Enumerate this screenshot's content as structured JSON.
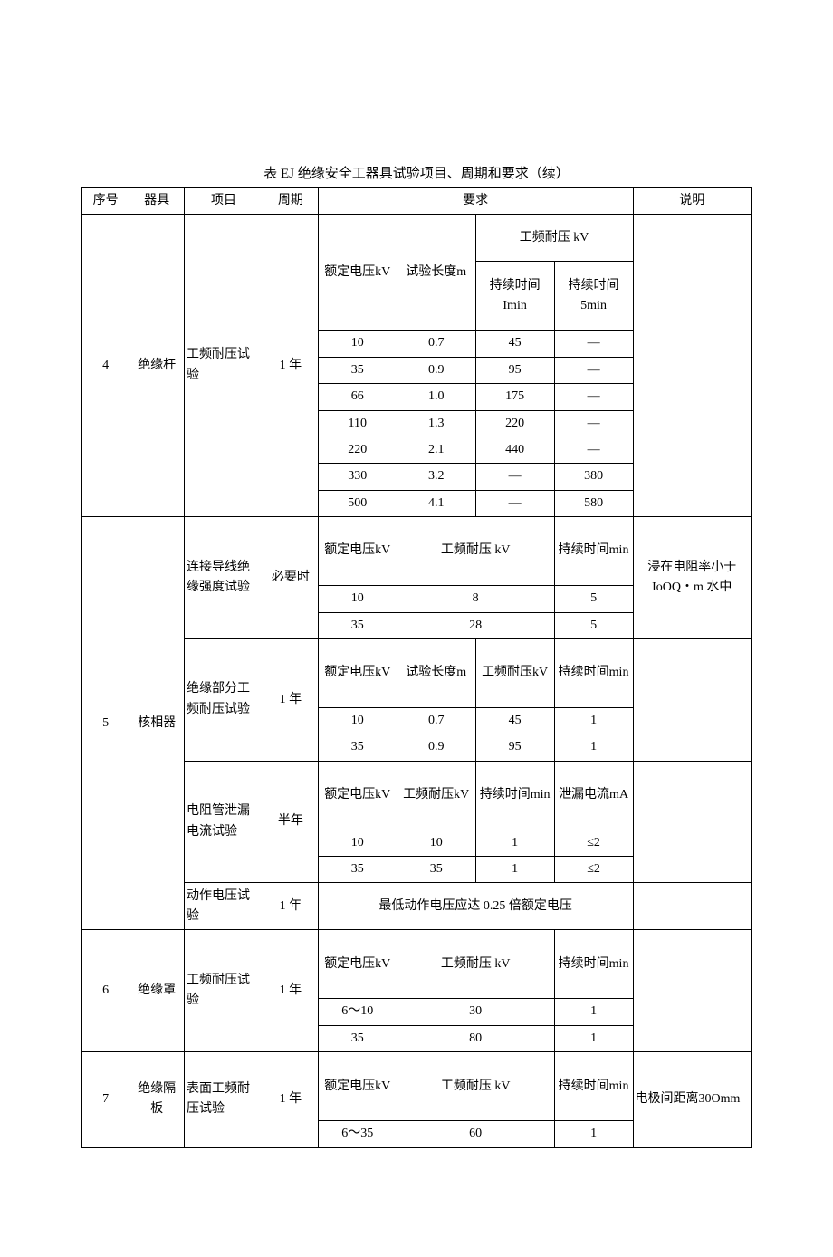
{
  "title": "表 EJ 绝缘安全工器具试验项目、周期和要求（续）",
  "headers": {
    "xuhao": "序号",
    "qiju": "器具",
    "xiangmu": "项目",
    "zhouqi": "周期",
    "yaoqiu": "要求",
    "shuoming": "说明"
  },
  "r4": {
    "xuhao": "4",
    "qiju": "绝缘杆",
    "xiangmu": "工频耐压试验",
    "zhouqi": "1 年",
    "sub": {
      "edv": "额定电压kV",
      "len": "试验长度m",
      "gp": "工频耐压 kV",
      "t1": "持续时间Imin",
      "t5": "持续时间5min"
    },
    "rows": [
      [
        "10",
        "0.7",
        "45",
        "—"
      ],
      [
        "35",
        "0.9",
        "95",
        "—"
      ],
      [
        "66",
        "1.0",
        "175",
        "—"
      ],
      [
        "110",
        "1.3",
        "220",
        "—"
      ],
      [
        "220",
        "2.1",
        "440",
        "—"
      ],
      [
        "330",
        "3.2",
        "—",
        "380"
      ],
      [
        "500",
        "4.1",
        "—",
        "580"
      ]
    ],
    "shuoming": ""
  },
  "r5": {
    "xuhao": "5",
    "qiju": "核相器",
    "a": {
      "xiangmu": "连接导线绝缘强度试验",
      "zhouqi": "必要时",
      "sub": {
        "edv": "额定电压kV",
        "gp": "工频耐压 kV",
        "t": "持续时间min"
      },
      "rows": [
        [
          "10",
          "8",
          "5"
        ],
        [
          "35",
          "28",
          "5"
        ]
      ],
      "shuoming": "浸在电阻率小于IoOQ・m 水中"
    },
    "b": {
      "xiangmu": "绝缘部分工频耐压试验",
      "zhouqi": "1 年",
      "sub": {
        "edv": "额定电压kV",
        "len": "试验长度m",
        "gp": "工频耐压kV",
        "t": "持续时间min"
      },
      "rows": [
        [
          "10",
          "0.7",
          "45",
          "1"
        ],
        [
          "35",
          "0.9",
          "95",
          "1"
        ]
      ],
      "shuoming": ""
    },
    "c": {
      "xiangmu": "电阻管泄漏电流试验",
      "zhouqi": "半年",
      "sub": {
        "edv": "额定电压kV",
        "gp": "工频耐压kV",
        "t": "持续时间min",
        "leak": "泄漏电流mA"
      },
      "rows": [
        [
          "10",
          "10",
          "1",
          "≤2"
        ],
        [
          "35",
          "35",
          "1",
          "≤2"
        ]
      ],
      "shuoming": ""
    },
    "d": {
      "xiangmu": "动作电压试验",
      "zhouqi": "1 年",
      "text": "最低动作电压应达 0.25 倍额定电压",
      "shuoming": ""
    }
  },
  "r6": {
    "xuhao": "6",
    "qiju": "绝缘罩",
    "xiangmu": "工频耐压试验",
    "zhouqi": "1 年",
    "sub": {
      "edv": "额定电压kV",
      "gp": "工频耐压 kV",
      "t": "持续时间min"
    },
    "rows": [
      [
        "6～10",
        "30",
        "1"
      ],
      [
        "35",
        "80",
        "1"
      ]
    ],
    "shuoming": ""
  },
  "r7": {
    "xuhao": "7",
    "qiju": "绝缘隔板",
    "xiangmu": "表面工频耐压试验",
    "zhouqi": "1 年",
    "sub": {
      "edv": "额定电压kV",
      "gp": "工频耐压 kV",
      "t": "持续时间min"
    },
    "rows": [
      [
        "6～35",
        "60",
        "1"
      ]
    ],
    "shuoming": "电极间距离30Omm"
  }
}
